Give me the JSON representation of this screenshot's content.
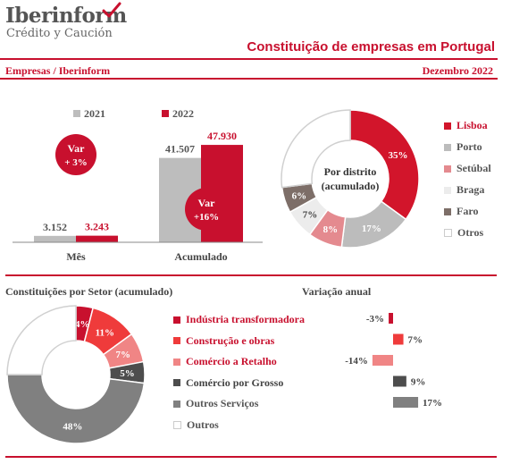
{
  "header": {
    "brand": "Iberinform",
    "brand_sub": "Crédito y Caución",
    "title": "Constituição de empresas em Portugal",
    "source": "Empresas / Iberinform",
    "period": "Dezembro 2022"
  },
  "colors": {
    "accent": "#c8102e",
    "gray": "#bdbdbd",
    "district": [
      "#d2152b",
      "#bcbcbc",
      "#e48a8f",
      "#ececec",
      "#7d6e68",
      "#ffffff"
    ],
    "sector": [
      "#c8102e",
      "#ef3b3b",
      "#f08585",
      "#4d4d4d",
      "#808080",
      "#ffffff"
    ]
  },
  "icons": {
    "logo": "check-swoosh-icon"
  },
  "chart_data": [
    {
      "type": "bar",
      "categories": [
        "Mês",
        "Acumulado"
      ],
      "series": [
        {
          "name": "2021",
          "values": [
            3152,
            41507
          ],
          "labels": [
            "3.152",
            "41.507"
          ]
        },
        {
          "name": "2022",
          "values": [
            3243,
            47930
          ],
          "labels": [
            "3.243",
            "47.930"
          ]
        }
      ],
      "annotations": [
        {
          "category": "Mês",
          "line1": "Var",
          "line2": "+ 3%"
        },
        {
          "category": "Acumulado",
          "line1": "Var",
          "line2": "+16%"
        }
      ],
      "ylim": [
        0,
        55000
      ],
      "legend": "top"
    },
    {
      "type": "pie",
      "center_label": [
        "Por distrito",
        "(acumulado)"
      ],
      "labels": [
        "Lisboa",
        "Porto",
        "Setúbal",
        "Braga",
        "Faro",
        "Otros"
      ],
      "values": [
        35,
        17,
        8,
        7,
        6,
        27
      ],
      "value_labels": [
        "35%",
        "17%",
        "8%",
        "7%",
        "6%",
        ""
      ],
      "legend": "right"
    },
    {
      "type": "pie",
      "title": "Constituições por Setor (acumulado)",
      "labels": [
        "Indústria transformadora",
        "Construção e obras",
        "Comércio a Retalho",
        "Comércio por Grosso",
        "Outros Serviços",
        "Outros"
      ],
      "values": [
        4,
        11,
        7,
        5,
        48,
        25
      ],
      "value_labels": [
        "4%",
        "11%",
        "7%",
        "5%",
        "48%",
        ""
      ],
      "legend": "right"
    },
    {
      "type": "bar",
      "title": "Variação anual",
      "categories": [
        "Indústria transformadora",
        "Construção e obras",
        "Comércio a Retalho",
        "Comércio por Grosso",
        "Outros Serviços"
      ],
      "values": [
        -3,
        7,
        -14,
        9,
        17
      ],
      "value_labels": [
        "-3%",
        "7%",
        "-14%",
        "9%",
        "17%"
      ]
    }
  ]
}
